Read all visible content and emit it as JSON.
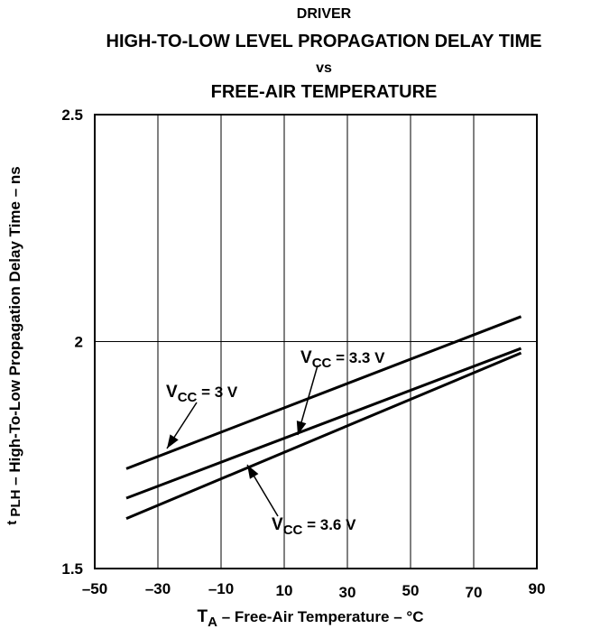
{
  "chart_data": {
    "type": "line",
    "title_lines": [
      "DRIVER",
      "HIGH-TO-LOW LEVEL PROPAGATION DELAY TIME",
      "vs",
      "FREE-AIR TEMPERATURE"
    ],
    "xlabel": {
      "main": "T",
      "sub": "A",
      "rest": " – Free-Air Temperature – °C"
    },
    "ylabel": {
      "pre": "t",
      "sub": "PLH",
      "rest": " – High-To-Low Propagation Delay Time – ns"
    },
    "xlim": [
      -50,
      90
    ],
    "ylim": [
      1.5,
      2.5
    ],
    "x_ticks": [
      -50,
      -30,
      -10,
      10,
      30,
      50,
      70,
      90
    ],
    "x_tick_labels": [
      "–50",
      "–30",
      "–10",
      "10",
      "30",
      "50",
      "70",
      "90"
    ],
    "y_ticks": [
      1.5,
      2,
      2.5
    ],
    "y_tick_labels": [
      "1.5",
      "2",
      "2.5"
    ],
    "grid": true,
    "series": [
      {
        "name": "VCC = 3 V",
        "label_main": "V",
        "label_sub": "CC",
        "label_rest": " = 3 V",
        "x": [
          -40,
          85
        ],
        "y": [
          1.72,
          2.055
        ]
      },
      {
        "name": "VCC = 3.3 V",
        "label_main": "V",
        "label_sub": "CC",
        "label_rest": " = 3.3 V",
        "x": [
          -40,
          85
        ],
        "y": [
          1.655,
          1.985
        ]
      },
      {
        "name": "VCC = 3.6 V",
        "label_main": "V",
        "label_sub": "CC",
        "label_rest": " = 3.6 V",
        "x": [
          -40,
          85
        ],
        "y": [
          1.61,
          1.975
        ]
      }
    ]
  }
}
